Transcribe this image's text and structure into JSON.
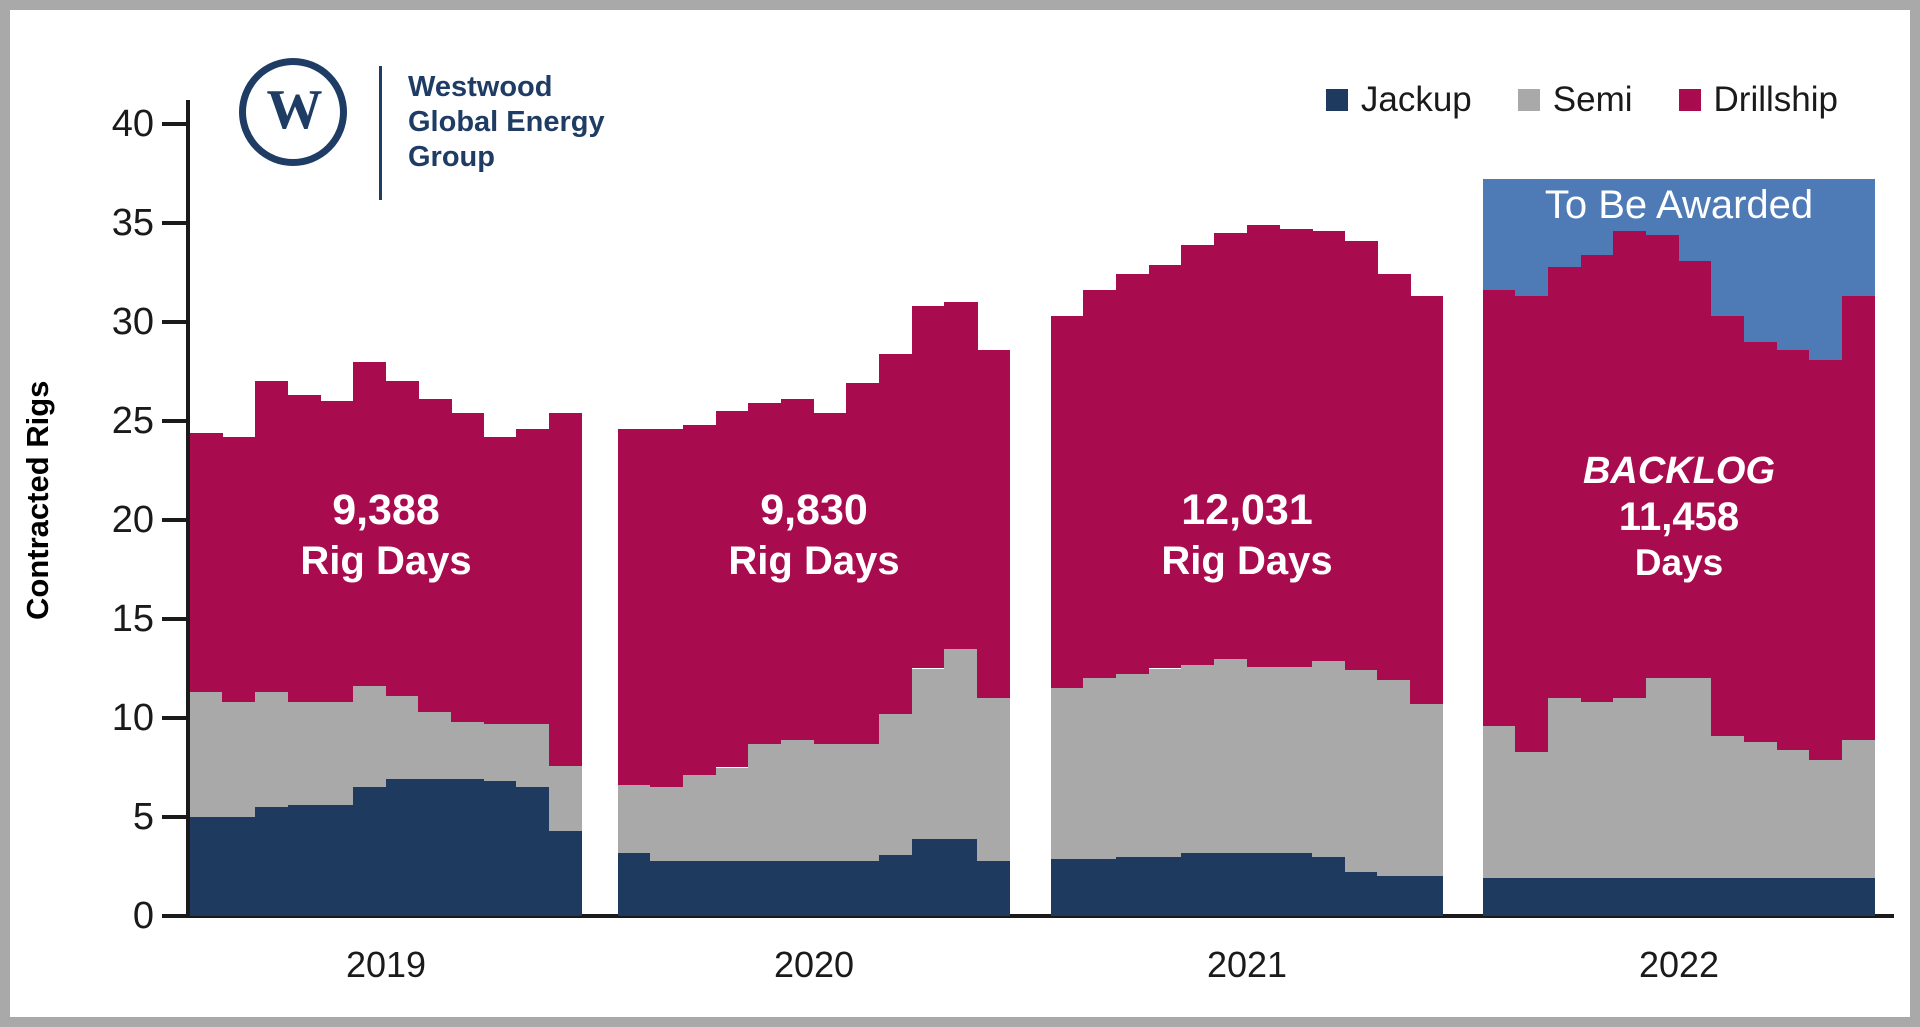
{
  "branding": {
    "logo_monogram": "W",
    "company_lines": [
      "Westwood",
      "Global Energy",
      "Group"
    ]
  },
  "colors": {
    "jackup": "#1e3a5f",
    "semi": "#a9a9a9",
    "drillship": "#a80c4f",
    "to_be_awarded": "#4e7bb5",
    "logo_navy": "#1e3c64",
    "axis_text": "#1a1a1a",
    "frame_border": "#a9a9a9"
  },
  "legend": [
    {
      "label": "Jackup",
      "color": "#1e3a5f"
    },
    {
      "label": "Semi",
      "color": "#a9a9a9"
    },
    {
      "label": "Drillship",
      "color": "#a80c4f"
    }
  ],
  "axes": {
    "y_title": "Contracted Rigs",
    "y_ticks": [
      0,
      5,
      10,
      15,
      20,
      25,
      30,
      35,
      40
    ],
    "x_labels": [
      "2019",
      "2020",
      "2021",
      "2022"
    ]
  },
  "tba": {
    "label": "To Be Awarded",
    "color": "#4e7bb5",
    "stack_top": 37.2
  },
  "chart_data": {
    "type": "bar",
    "stacked": true,
    "description": "Monthly average contracted rigs by rig type, 12 bars per year group",
    "ylabel": "Contracted Rigs",
    "ylim": [
      0,
      40
    ],
    "series_order": [
      "jackup",
      "semi",
      "drillship",
      "to_be_awarded"
    ],
    "groups": [
      {
        "year": "2019",
        "annotation": [
          "9,388",
          "Rig Days"
        ],
        "jackup": [
          5.0,
          5.0,
          5.5,
          5.6,
          5.6,
          6.5,
          6.9,
          6.9,
          6.9,
          6.8,
          6.5,
          4.3
        ],
        "semi": [
          6.3,
          5.8,
          5.8,
          5.2,
          5.2,
          5.1,
          4.2,
          3.4,
          2.9,
          2.9,
          3.2,
          3.3
        ],
        "drillship": [
          13.1,
          13.4,
          15.7,
          15.5,
          15.2,
          16.4,
          15.9,
          15.8,
          15.6,
          14.5,
          14.9,
          17.8
        ]
      },
      {
        "year": "2020",
        "annotation": [
          "9,830",
          "Rig Days"
        ],
        "jackup": [
          3.2,
          2.8,
          2.8,
          2.8,
          2.8,
          2.8,
          2.8,
          2.8,
          3.1,
          3.9,
          3.9,
          2.8
        ],
        "semi": [
          3.4,
          3.7,
          4.3,
          4.7,
          5.9,
          6.1,
          5.9,
          5.9,
          7.1,
          8.6,
          9.6,
          8.2
        ],
        "drillship": [
          18.0,
          18.1,
          17.7,
          18.0,
          17.2,
          17.2,
          16.7,
          18.2,
          18.2,
          18.3,
          17.5,
          17.6
        ]
      },
      {
        "year": "2021",
        "annotation": [
          "12,031",
          "Rig Days"
        ],
        "jackup": [
          2.9,
          2.9,
          3.0,
          3.0,
          3.2,
          3.2,
          3.2,
          3.2,
          3.0,
          2.2,
          2.0,
          2.0
        ],
        "semi": [
          8.6,
          9.1,
          9.2,
          9.5,
          9.5,
          9.8,
          9.4,
          9.4,
          9.9,
          10.2,
          9.9,
          8.7
        ],
        "drillship": [
          18.8,
          19.6,
          20.2,
          20.4,
          21.2,
          21.5,
          22.3,
          22.1,
          21.7,
          21.7,
          20.5,
          20.6
        ]
      },
      {
        "year": "2022",
        "annotation": [
          "BACKLOG",
          "11,458",
          "Days"
        ],
        "jackup": [
          1.9,
          1.9,
          1.9,
          1.9,
          1.9,
          1.9,
          1.9,
          1.9,
          1.9,
          1.9,
          1.9,
          1.9
        ],
        "semi": [
          7.7,
          6.4,
          9.1,
          8.9,
          9.1,
          10.1,
          10.1,
          7.2,
          6.9,
          6.5,
          6.0,
          7.0
        ],
        "drillship": [
          22.0,
          23.0,
          21.8,
          22.6,
          23.6,
          22.4,
          21.1,
          21.2,
          20.2,
          20.2,
          20.2,
          22.4
        ],
        "to_be_awarded": [
          5.6,
          5.9,
          4.4,
          3.8,
          2.6,
          2.8,
          4.1,
          6.9,
          8.2,
          8.6,
          9.1,
          5.9
        ]
      }
    ]
  }
}
